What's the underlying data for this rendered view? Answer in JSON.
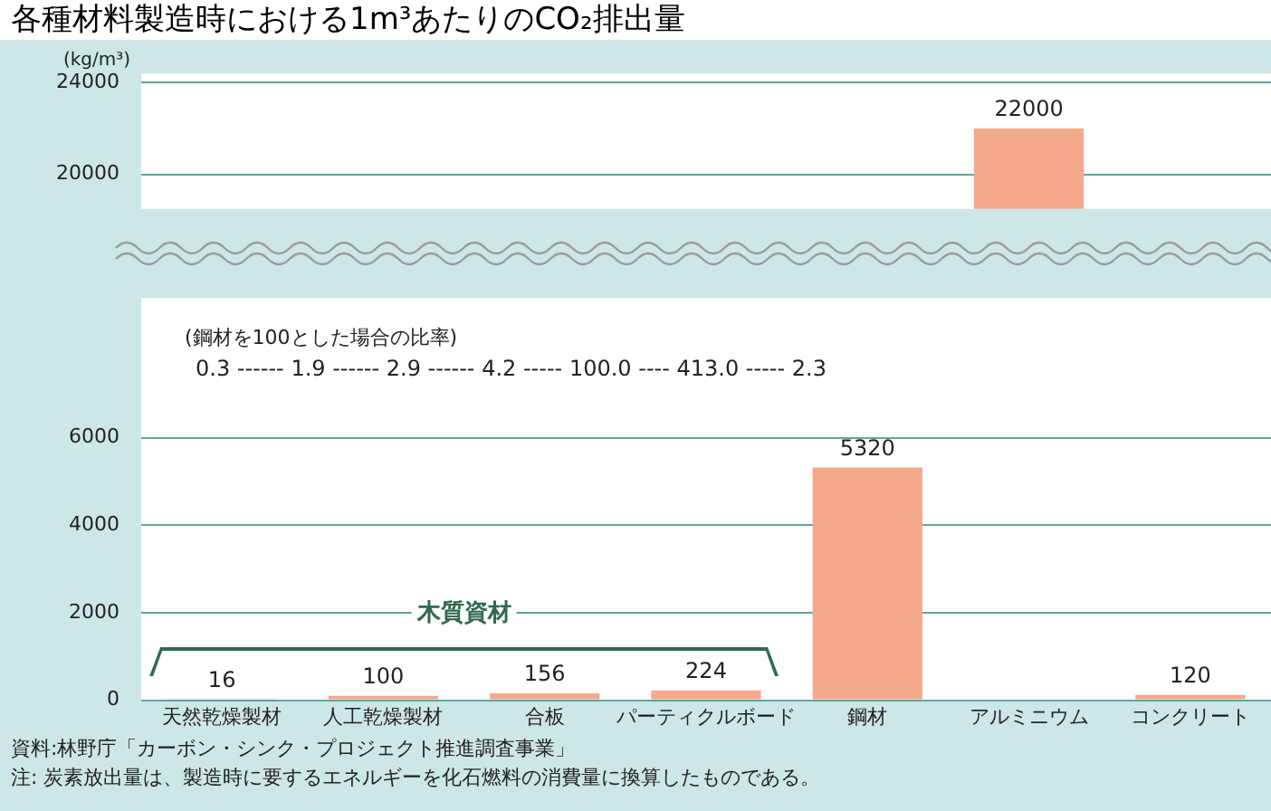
{
  "chart_data": [
    {
      "type": "bar",
      "title": "各種材料製造時における1m³あたりのCO₂排出量",
      "ylabel": "(kg/m³)",
      "categories": [
        null,
        null,
        null,
        null,
        null,
        null,
        null
      ],
      "values": [
        null,
        null,
        null,
        null,
        null,
        22000,
        null
      ],
      "color": "#f4a98a",
      "data_labels": true,
      "ylim": [
        18500,
        24400
      ],
      "yticks": [
        20000,
        24000
      ],
      "grid": "y",
      "tick_labels": "y"
    },
    {
      "type": "bar",
      "categories": [
        "天然乾燥製材",
        "人工乾燥製材",
        "合板",
        "パーティクルボード",
        "鋼材",
        "アルミニウム",
        "コンクリート"
      ],
      "values": [
        16,
        100,
        156,
        224,
        5320,
        null,
        120
      ],
      "color": "#f4a98a",
      "data_labels": true,
      "ylim": [
        0,
        9200
      ],
      "yticks": [
        0,
        2000,
        4000,
        6000
      ],
      "grid": "y",
      "annotations": [
        "(鋼材を100とした場合の比率)",
        "0.3 ------ 1.9 ------ 2.9 ------ 4.2 ----- 100.0 ---- 413.0 ----- 2.3",
        "木質資材",
        "資料:林野庁「カーボン・シンク・プロジェクト推進調査事業」",
        "注: 炭素放出量は、製造時に要するエネルギーを化石燃料の消費量に換算したものである。"
      ]
    }
  ]
}
